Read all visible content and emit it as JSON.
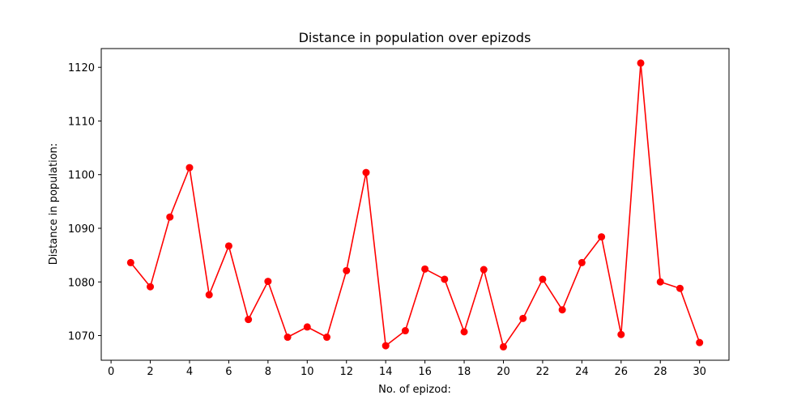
{
  "chart_data": {
    "type": "line",
    "title": "Distance in population over epizods",
    "xlabel": "No. of epizod:",
    "ylabel": "Distance in population:",
    "xlim": [
      -0.5,
      31.5
    ],
    "ylim": [
      1065.4,
      1123.5
    ],
    "xticks": [
      0,
      2,
      4,
      6,
      8,
      10,
      12,
      14,
      16,
      18,
      20,
      22,
      24,
      26,
      28,
      30
    ],
    "yticks": [
      1070,
      1080,
      1090,
      1100,
      1110,
      1120
    ],
    "grid": false,
    "legend": "none",
    "series": [
      {
        "color": "#ff0000",
        "marker": "circle",
        "x": [
          1,
          2,
          3,
          4,
          5,
          6,
          7,
          8,
          9,
          10,
          11,
          12,
          13,
          14,
          15,
          16,
          17,
          18,
          19,
          20,
          21,
          22,
          23,
          24,
          25,
          26,
          27,
          28,
          29,
          30
        ],
        "y": [
          1083.6,
          1079.1,
          1092.1,
          1101.3,
          1077.6,
          1086.7,
          1073.0,
          1080.1,
          1069.7,
          1071.6,
          1069.7,
          1082.1,
          1100.4,
          1068.1,
          1070.9,
          1082.4,
          1080.5,
          1070.7,
          1082.3,
          1067.9,
          1073.2,
          1080.5,
          1074.8,
          1083.6,
          1088.4,
          1070.2,
          1120.8,
          1080.0,
          1078.8,
          1068.7
        ]
      }
    ]
  }
}
